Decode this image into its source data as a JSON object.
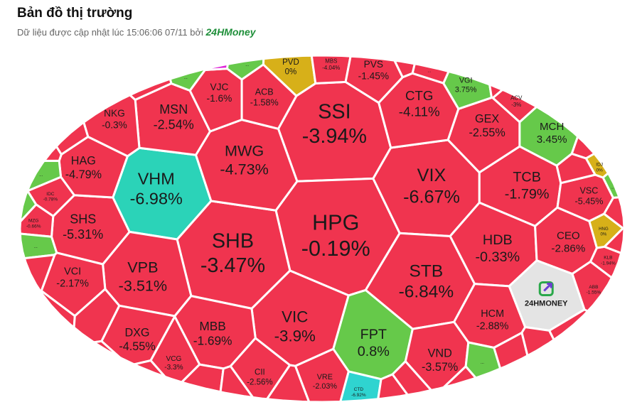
{
  "header": {
    "title": "Bản đồ thị trường",
    "subtitle": "Dữ liệu được cập nhật lúc 15:06:06 07/11 bởi",
    "brand": "24HMoney"
  },
  "logo_text": "24HMONEY",
  "cells": [
    {
      "ticker": "SSI",
      "change": "-3.94%",
      "color": "#f0344f"
    },
    {
      "ticker": "HPG",
      "change": "-0.19%",
      "color": "#f0344f"
    },
    {
      "ticker": "VIX",
      "change": "-6.67%",
      "color": "#f0344f"
    },
    {
      "ticker": "SHB",
      "change": "-3.47%",
      "color": "#f0344f"
    },
    {
      "ticker": "VHM",
      "change": "-6.98%",
      "color": "#2bd3b8"
    },
    {
      "ticker": "MWG",
      "change": "-4.73%",
      "color": "#f0344f"
    },
    {
      "ticker": "STB",
      "change": "-6.84%",
      "color": "#f0344f"
    },
    {
      "ticker": "VIC",
      "change": "-3.9%",
      "color": "#f0344f"
    },
    {
      "ticker": "FPT",
      "change": "0.8%",
      "color": "#66c94a"
    },
    {
      "ticker": "CTG",
      "change": "-4.11%",
      "color": "#f0344f"
    },
    {
      "ticker": "TCB",
      "change": "-1.79%",
      "color": "#f0344f"
    },
    {
      "ticker": "HDB",
      "change": "-0.33%",
      "color": "#f0344f"
    },
    {
      "ticker": "VPB",
      "change": "-3.51%",
      "color": "#f0344f"
    },
    {
      "ticker": "SHS",
      "change": "-5.31%",
      "color": "#f0344f"
    },
    {
      "ticker": "HAG",
      "change": "-4.79%",
      "color": "#f0344f"
    },
    {
      "ticker": "MSN",
      "change": "-2.54%",
      "color": "#f0344f"
    },
    {
      "ticker": "GEX",
      "change": "-2.55%",
      "color": "#f0344f"
    },
    {
      "ticker": "MCH",
      "change": "3.45%",
      "color": "#66c94a"
    },
    {
      "ticker": "CEO",
      "change": "-2.86%",
      "color": "#f0344f"
    },
    {
      "ticker": "VSC",
      "change": "-5.45%",
      "color": "#f0344f"
    },
    {
      "ticker": "HCM",
      "change": "-2.88%",
      "color": "#f0344f"
    },
    {
      "ticker": "VND",
      "change": "-3.57%",
      "color": "#f0344f"
    },
    {
      "ticker": "MBB",
      "change": "-1.69%",
      "color": "#f0344f"
    },
    {
      "ticker": "DXG",
      "change": "-4.55%",
      "color": "#f0344f"
    },
    {
      "ticker": "VCI",
      "change": "-2.17%",
      "color": "#f0344f"
    },
    {
      "ticker": "NKG",
      "change": "-0.3%",
      "color": "#f0344f"
    },
    {
      "ticker": "VJC",
      "change": "-1.6%",
      "color": "#f0344f"
    },
    {
      "ticker": "ACB",
      "change": "-1.58%",
      "color": "#f0344f"
    },
    {
      "ticker": "PVD",
      "change": "0%",
      "color": "#d7b019"
    },
    {
      "ticker": "MBS",
      "change": "-4.04%",
      "color": "#f0344f"
    },
    {
      "ticker": "PVS",
      "change": "-1.45%",
      "color": "#f0344f"
    },
    {
      "ticker": "VGI",
      "change": "3.75%",
      "color": "#66c94a"
    },
    {
      "ticker": "ACV",
      "change": "-3%",
      "color": "#f0344f"
    },
    {
      "ticker": "CII",
      "change": "-2.56%",
      "color": "#f0344f"
    },
    {
      "ticker": "VRE",
      "change": "-2.03%",
      "color": "#f0344f"
    },
    {
      "ticker": "VCG",
      "change": "-3.3%",
      "color": "#f0344f"
    },
    {
      "ticker": "IDJ",
      "change": "0%",
      "color": "#d7b019"
    },
    {
      "ticker": "KLB",
      "change": "-1.94%",
      "color": "#f0344f"
    },
    {
      "ticker": "ABB",
      "change": "-1.55%",
      "color": "#f0344f"
    },
    {
      "ticker": "HNG",
      "change": "0%",
      "color": "#d7b019"
    },
    {
      "ticker": "IDC",
      "change": "-0.78%",
      "color": "#f0344f"
    },
    {
      "ticker": "MZG",
      "change": "-0.66%",
      "color": "#f0344f"
    },
    {
      "ticker": "CTD",
      "change": "-6.92%",
      "color": "#2fd4d0"
    },
    {
      "ticker": "...",
      "color": "#66c94a"
    },
    {
      "ticker": "...",
      "color": "#66c94a"
    },
    {
      "ticker": "...",
      "color": "#66c94a"
    },
    {
      "ticker": "...",
      "color": "#66c94a"
    },
    {
      "ticker": "...",
      "color": "#f0344f"
    },
    {
      "ticker": "...",
      "color": "#66c94a"
    },
    {
      "ticker": "...",
      "color": "#66c94a"
    },
    {
      "ticker": "...",
      "color": "#66c94a"
    }
  ]
}
